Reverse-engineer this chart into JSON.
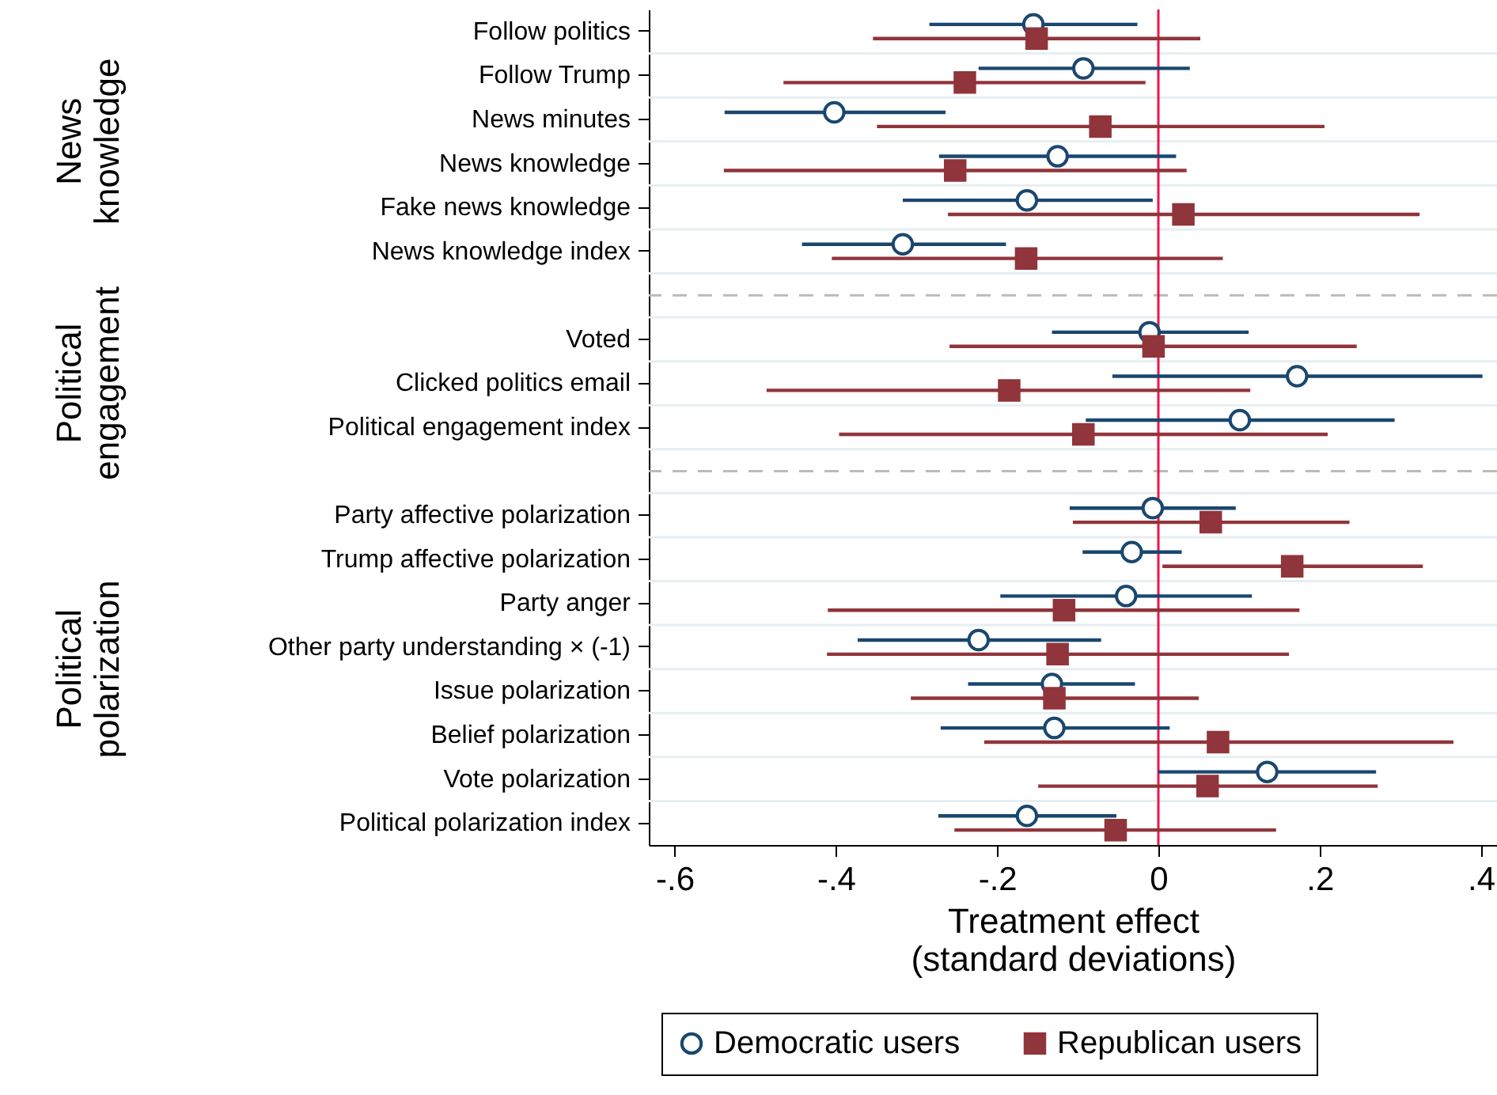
{
  "chart_data": {
    "type": "scatter",
    "orientation": "horizontal",
    "xlabel": "Treatment effect\n(standard deviations)",
    "categories": [
      "Follow politics",
      "Follow Trump",
      "News minutes",
      "News knowledge",
      "Fake news knowledge",
      "News knowledge index",
      null,
      "Voted",
      "Clicked politics email",
      "Political engagement index",
      null,
      "Party affective polarization",
      "Trump affective polarization",
      "Party anger",
      "Other party understanding × (-1)",
      "Issue polarization",
      "Belief polarization",
      "Vote polarization",
      "Political polarization index"
    ],
    "series": [
      {
        "name": "Democratic users",
        "color": "#1a476f",
        "marker": "circle",
        "values": [
          -0.155,
          -0.093,
          -0.402,
          -0.125,
          -0.163,
          -0.317,
          null,
          -0.011,
          0.172,
          0.101,
          null,
          -0.007,
          -0.033,
          -0.04,
          -0.223,
          -0.132,
          -0.129,
          0.135,
          -0.163
        ],
        "errors": [
          [
            -0.284,
            -0.026
          ],
          [
            -0.223,
            0.039
          ],
          [
            -0.538,
            -0.264
          ],
          [
            -0.272,
            0.022
          ],
          [
            -0.317,
            -0.007
          ],
          [
            -0.442,
            -0.189
          ],
          null,
          [
            -0.132,
            0.112
          ],
          [
            -0.057,
            0.402
          ],
          [
            -0.09,
            0.293
          ],
          null,
          [
            -0.11,
            0.096
          ],
          [
            -0.094,
            0.029
          ],
          [
            -0.196,
            0.116
          ],
          [
            -0.373,
            -0.071
          ],
          [
            -0.236,
            -0.029
          ],
          [
            -0.27,
            0.014
          ],
          [
            0,
            0.27
          ],
          [
            -0.273,
            -0.052
          ]
        ]
      },
      {
        "name": "Republican users",
        "color": "#90353b",
        "marker": "square",
        "values": [
          -0.151,
          -0.24,
          -0.072,
          -0.252,
          0.031,
          -0.164,
          null,
          -0.006,
          -0.185,
          -0.093,
          null,
          0.065,
          0.166,
          -0.117,
          -0.125,
          -0.129,
          0.074,
          0.061,
          -0.053
        ],
        "errors": [
          [
            -0.354,
            0.052
          ],
          [
            -0.465,
            -0.016
          ],
          [
            -0.349,
            0.206
          ],
          [
            -0.539,
            0.035
          ],
          [
            -0.261,
            0.324
          ],
          [
            -0.405,
            0.08
          ],
          null,
          [
            -0.259,
            0.246
          ],
          [
            -0.486,
            0.114
          ],
          [
            -0.396,
            0.21
          ],
          null,
          [
            -0.106,
            0.237
          ],
          [
            0.005,
            0.328
          ],
          [
            -0.41,
            0.175
          ],
          [
            -0.411,
            0.162
          ],
          [
            -0.307,
            0.05
          ],
          [
            -0.216,
            0.366
          ],
          [
            -0.149,
            0.272
          ],
          [
            -0.253,
            0.146
          ]
        ]
      }
    ],
    "xlim": [
      -0.632,
      0.42
    ],
    "xticks": [
      {
        "value": -0.6,
        "label": "-.6"
      },
      {
        "value": -0.4,
        "label": "-.4"
      },
      {
        "value": -0.2,
        "label": "-.2"
      },
      0,
      {
        "value": 0.2,
        "label": ".2"
      },
      {
        "value": 0.4,
        "label": ".4"
      }
    ],
    "ref_lines": [
      {
        "axis": "x",
        "value": 0,
        "color": "#e8174a"
      }
    ],
    "annotations": [
      "News\nknowledge",
      "Political\nengagement",
      "Political\npolarization"
    ],
    "grid": "y",
    "legend": "bottom"
  }
}
